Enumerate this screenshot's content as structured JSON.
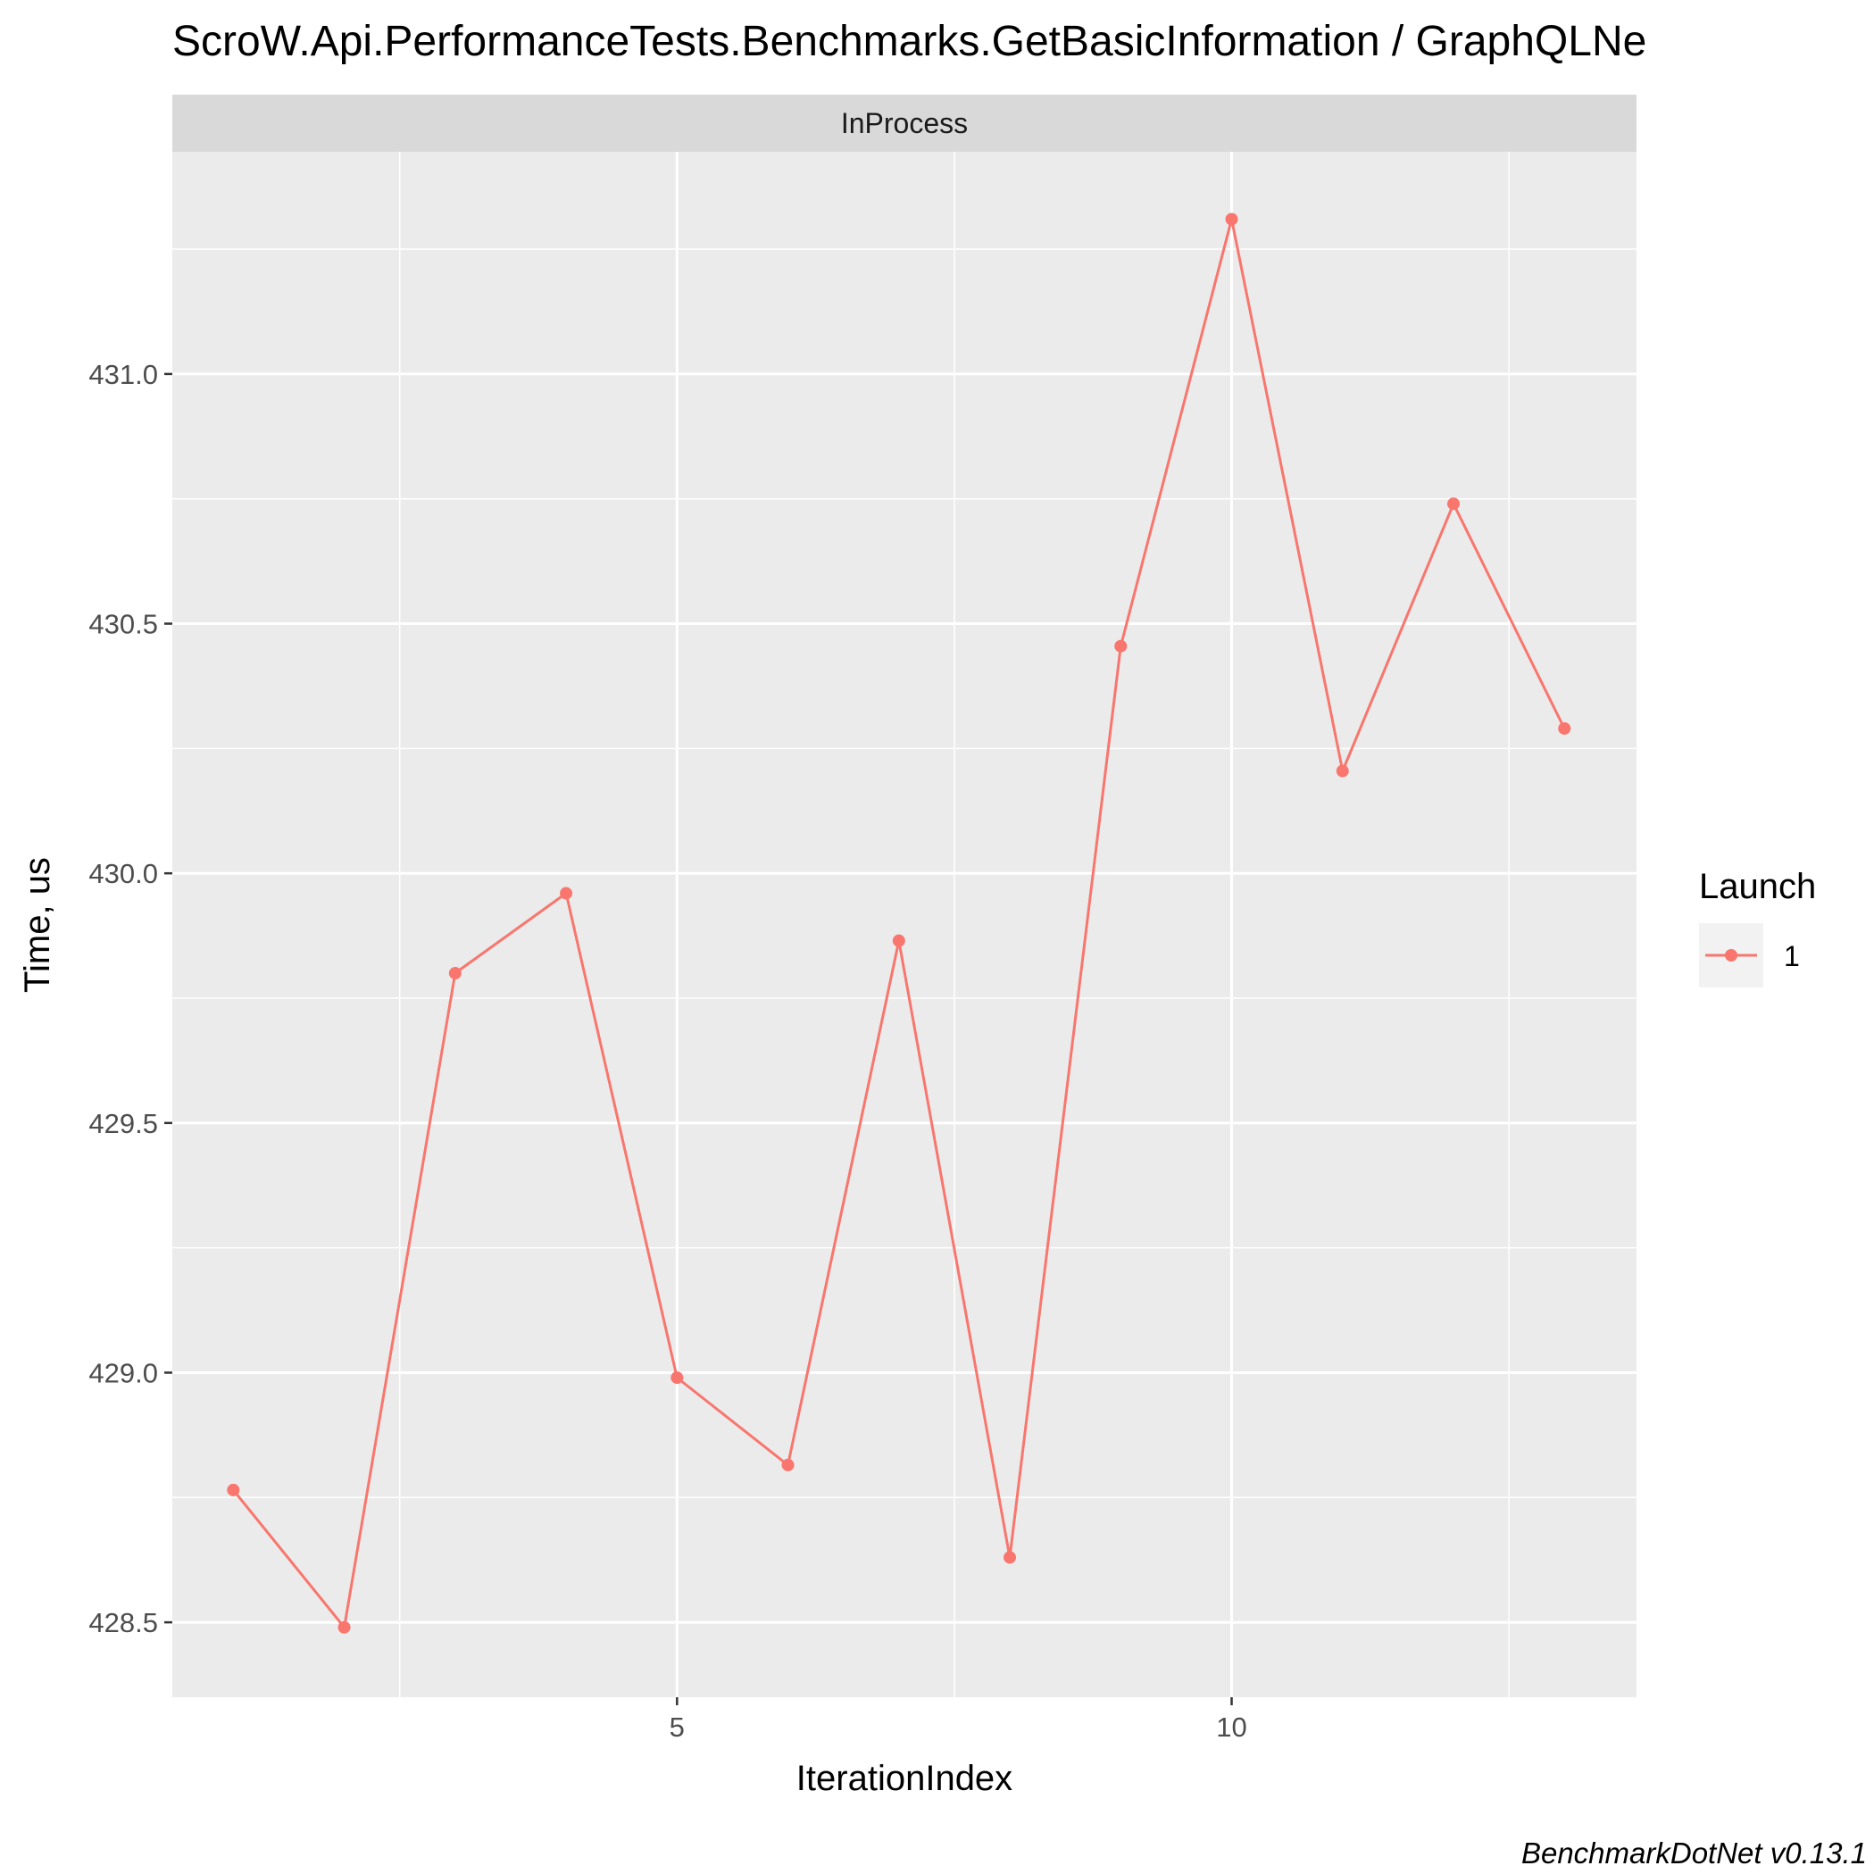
{
  "chart_data": {
    "type": "line",
    "title": "ScroW.Api.PerformanceTests.Benchmarks.GetBasicInformation / GraphQLNe",
    "facet_label": "InProcess",
    "xlabel": "IterationIndex",
    "ylabel": "Time, us",
    "caption": "BenchmarkDotNet v0.13.1",
    "xlim": [
      0.45,
      13.65
    ],
    "ylim": [
      428.35,
      431.445
    ],
    "x_ticks": [
      5,
      10
    ],
    "x_tick_labels": [
      "5",
      "10"
    ],
    "y_ticks": [
      428.5,
      429.0,
      429.5,
      430.0,
      430.5,
      431.0
    ],
    "y_tick_labels": [
      "428.5",
      "429.0",
      "429.5",
      "430.0",
      "430.5",
      "431.0"
    ],
    "grid": true,
    "legend": {
      "title": "Launch",
      "position": "right"
    },
    "series": [
      {
        "name": "1",
        "color": "#F8766D",
        "x": [
          1,
          2,
          3,
          4,
          5,
          6,
          7,
          8,
          9,
          10,
          11,
          12,
          13
        ],
        "values": [
          428.765,
          428.49,
          429.8,
          429.96,
          428.99,
          428.815,
          429.865,
          428.63,
          430.455,
          431.31,
          430.205,
          430.74,
          430.29
        ]
      }
    ]
  },
  "colors": {
    "panel_background": "#EBEBEB",
    "grid": "#FFFFFF",
    "strip_background": "#D9D9D9",
    "legend_key_background": "#F2F2F2"
  }
}
